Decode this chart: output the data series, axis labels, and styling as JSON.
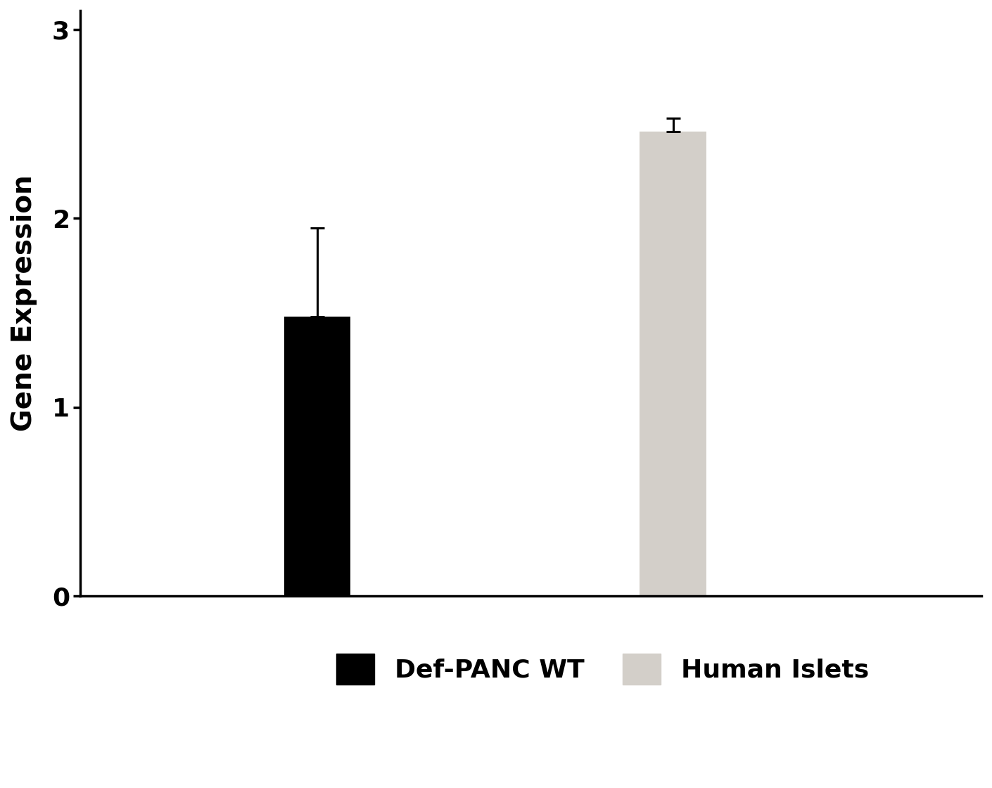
{
  "categories": [
    "Def-PANC WT",
    "Human Islets"
  ],
  "values": [
    1.48,
    2.46
  ],
  "errors": [
    0.47,
    0.07
  ],
  "bar_colors": [
    "#000000",
    "#d3cfc9"
  ],
  "ylabel": "Gene Expression",
  "ylim": [
    0,
    3.1
  ],
  "yticks": [
    0,
    1,
    2,
    3
  ],
  "bar_width": 0.28,
  "bar_positions": [
    1.0,
    2.5
  ],
  "xlim": [
    0.0,
    3.8
  ],
  "legend_labels": [
    "Def-PANC WT",
    "Human Islets"
  ],
  "background_color": "#ffffff",
  "ylabel_fontsize": 28,
  "tick_fontsize": 26,
  "legend_fontsize": 26,
  "error_capsize": 7,
  "error_linewidth": 2.2
}
